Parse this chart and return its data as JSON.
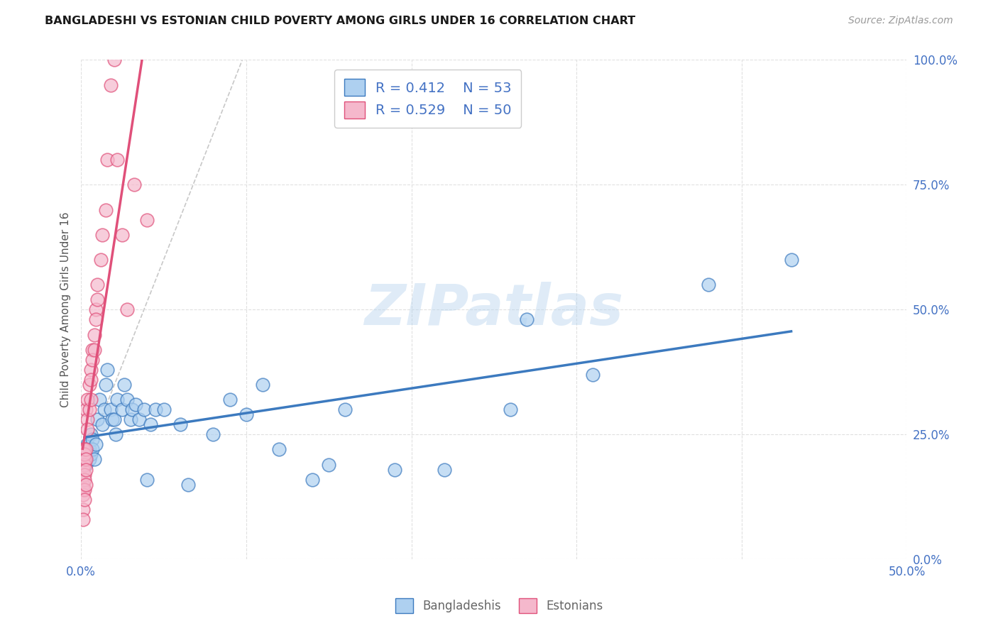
{
  "title": "BANGLADESHI VS ESTONIAN CHILD POVERTY AMONG GIRLS UNDER 16 CORRELATION CHART",
  "source": "Source: ZipAtlas.com",
  "ylabel": "Child Poverty Among Girls Under 16",
  "xlim": [
    0,
    0.5
  ],
  "ylim": [
    0,
    1.0
  ],
  "xticks": [
    0.0,
    0.5
  ],
  "xtick_labels": [
    "0.0%",
    "50.0%"
  ],
  "yticks": [
    0.0,
    0.25,
    0.5,
    0.75,
    1.0
  ],
  "ytick_labels": [
    "0.0%",
    "25.0%",
    "50.0%",
    "75.0%",
    "100.0%"
  ],
  "blue_color": "#aed0f0",
  "pink_color": "#f5b8cc",
  "blue_line_color": "#3c7abf",
  "pink_line_color": "#e0507a",
  "ref_line_color": "#c8c8c8",
  "legend_R1": "0.412",
  "legend_N1": "53",
  "legend_R2": "0.529",
  "legend_N2": "50",
  "watermark": "ZIPatlas",
  "bg_color": "#ffffff",
  "grid_color": "#e0e0e0",
  "axis_color": "#4472c4",
  "blue_x": [
    0.002,
    0.003,
    0.003,
    0.004,
    0.004,
    0.005,
    0.005,
    0.006,
    0.006,
    0.007,
    0.007,
    0.008,
    0.009,
    0.01,
    0.011,
    0.013,
    0.014,
    0.015,
    0.016,
    0.018,
    0.019,
    0.02,
    0.021,
    0.022,
    0.025,
    0.026,
    0.028,
    0.03,
    0.031,
    0.033,
    0.035,
    0.038,
    0.04,
    0.042,
    0.045,
    0.05,
    0.06,
    0.065,
    0.08,
    0.09,
    0.1,
    0.11,
    0.12,
    0.14,
    0.15,
    0.16,
    0.19,
    0.22,
    0.26,
    0.27,
    0.31,
    0.38,
    0.43
  ],
  "blue_y": [
    0.2,
    0.22,
    0.19,
    0.21,
    0.23,
    0.2,
    0.22,
    0.21,
    0.25,
    0.24,
    0.22,
    0.2,
    0.23,
    0.28,
    0.32,
    0.27,
    0.3,
    0.35,
    0.38,
    0.3,
    0.28,
    0.28,
    0.25,
    0.32,
    0.3,
    0.35,
    0.32,
    0.28,
    0.3,
    0.31,
    0.28,
    0.3,
    0.16,
    0.27,
    0.3,
    0.3,
    0.27,
    0.15,
    0.25,
    0.32,
    0.29,
    0.35,
    0.22,
    0.16,
    0.19,
    0.3,
    0.18,
    0.18,
    0.3,
    0.48,
    0.37,
    0.55,
    0.6
  ],
  "pink_x": [
    0.001,
    0.001,
    0.001,
    0.001,
    0.001,
    0.001,
    0.001,
    0.001,
    0.001,
    0.001,
    0.002,
    0.002,
    0.002,
    0.002,
    0.002,
    0.002,
    0.002,
    0.002,
    0.003,
    0.003,
    0.003,
    0.003,
    0.003,
    0.004,
    0.004,
    0.004,
    0.005,
    0.005,
    0.006,
    0.006,
    0.006,
    0.007,
    0.007,
    0.008,
    0.008,
    0.009,
    0.009,
    0.01,
    0.01,
    0.012,
    0.013,
    0.015,
    0.016,
    0.018,
    0.02,
    0.022,
    0.025,
    0.028,
    0.032,
    0.04
  ],
  "pink_y": [
    0.2,
    0.21,
    0.19,
    0.18,
    0.22,
    0.15,
    0.14,
    0.13,
    0.1,
    0.08,
    0.2,
    0.22,
    0.19,
    0.21,
    0.17,
    0.16,
    0.14,
    0.12,
    0.22,
    0.3,
    0.2,
    0.18,
    0.15,
    0.28,
    0.26,
    0.32,
    0.35,
    0.3,
    0.38,
    0.36,
    0.32,
    0.42,
    0.4,
    0.45,
    0.42,
    0.5,
    0.48,
    0.55,
    0.52,
    0.6,
    0.65,
    0.7,
    0.8,
    0.95,
    1.0,
    0.8,
    0.65,
    0.5,
    0.75,
    0.68
  ]
}
